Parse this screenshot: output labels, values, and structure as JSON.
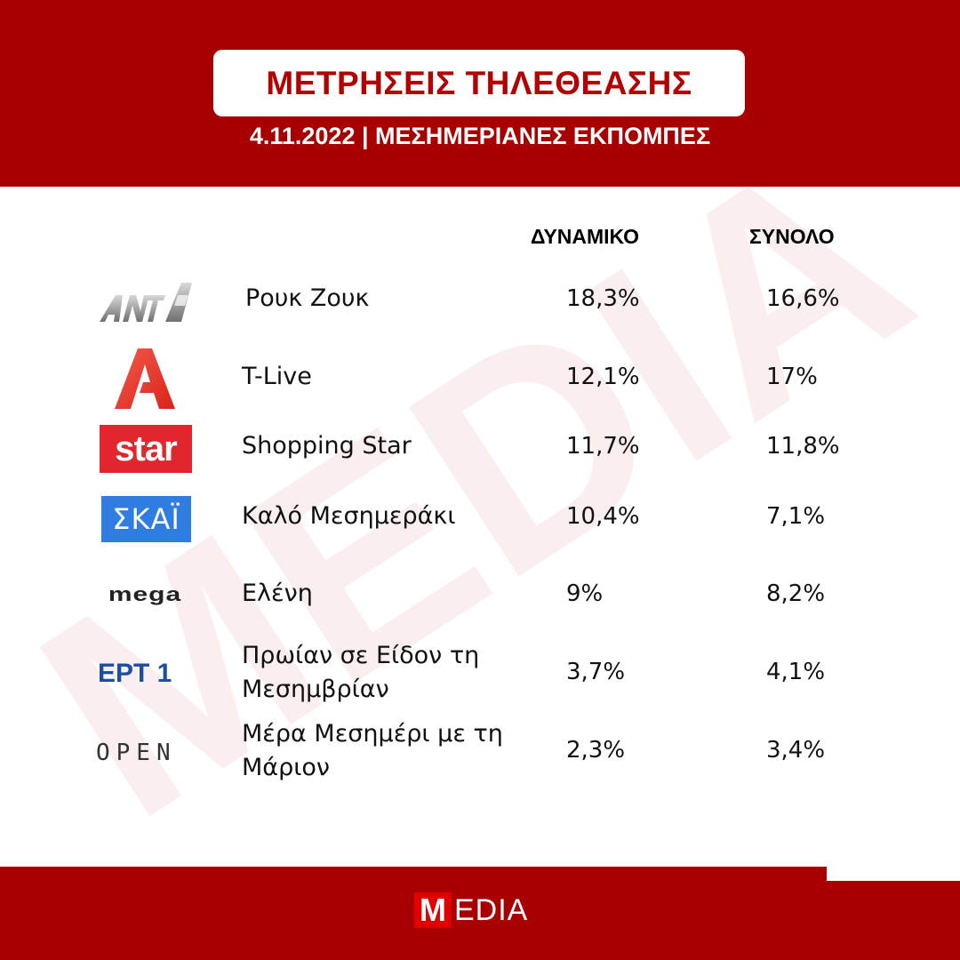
{
  "header": {
    "title": "ΜΕΤΡΗΣΕΙΣ ΤΗΛΕΘΕΑΣΗΣ",
    "subtitle": "4.11.2022 | ΜΕΣΗΜΕΡΙΑΝΕΣ ΕΚΠΟΜΠΕΣ"
  },
  "columns": {
    "dynamic": "ΔΥΝΑΜΙΚΟ",
    "total": "ΣΥΝΟΛΟ"
  },
  "rows": [
    {
      "channel_icon": "ant1-logo-icon",
      "show": "Ρουκ Ζουκ",
      "dynamic": "18,3%",
      "total": "16,6%"
    },
    {
      "channel_icon": "alpha-logo-icon",
      "show": "T-Live",
      "dynamic": "12,1%",
      "total": "17%"
    },
    {
      "channel_icon": "star-logo-icon",
      "logo_text": "star",
      "show": "Shopping Star",
      "dynamic": "11,7%",
      "total": "11,8%"
    },
    {
      "channel_icon": "skai-logo-icon",
      "logo_text": "ΣΚΑΪ",
      "show": "Καλό Μεσημεράκι",
      "dynamic": "10,4%",
      "total": "7,1%"
    },
    {
      "channel_icon": "mega-logo-icon",
      "logo_text": "mega",
      "show": "Ελένη",
      "dynamic": "9%",
      "total": "8,2%"
    },
    {
      "channel_icon": "ert1-logo-icon",
      "logo_text": "ΕΡΤ 1",
      "show_line1": "Πρωίαν σε Είδον τη",
      "show_line2": "Μεσημβρίαν",
      "dynamic": "3,7%",
      "total": "4,1%"
    },
    {
      "channel_icon": "open-logo-icon",
      "logo_text": "OPEN",
      "show_line1": "Μέρα Μεσημέρι με τη",
      "show_line2": "Μάριον",
      "dynamic": "2,3%",
      "total": "3,4%"
    }
  ],
  "footer": {
    "brand_m": "M",
    "brand_rest": "EDIA"
  },
  "watermark": "MEDIA",
  "colors": {
    "header_red": "#a80000",
    "title_red": "#b30000",
    "star_red": "#e1262d",
    "skai_blue": "#2f7de1",
    "ert_blue": "#1d4fa0"
  }
}
